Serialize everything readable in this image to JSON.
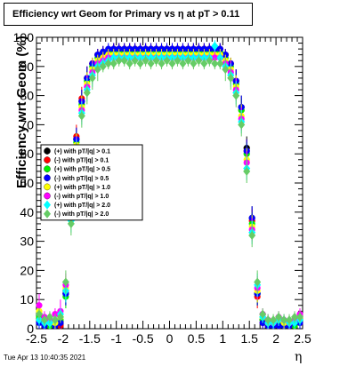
{
  "title": "Efficiency wrt Geom for Primary vs   η at pT > 0.11",
  "timestamp": "Tue Apr 13 10:40:35 2021",
  "chart_data": {
    "type": "scatter",
    "xlabel": "η",
    "ylabel": "Efficiency wrt Geom (%)",
    "xlim": [
      -2.5,
      2.5
    ],
    "ylim": [
      0,
      100
    ],
    "xticks": [
      "-2.5",
      "-2",
      "-1.5",
      "-1",
      "-0.5",
      "0",
      "0.5",
      "1",
      "1.5",
      "2",
      "2.5"
    ],
    "yticks": [
      "0",
      "10",
      "20",
      "30",
      "40",
      "50",
      "60",
      "70",
      "80",
      "90",
      "100"
    ],
    "legend_position": "left-middle",
    "grid": false,
    "x": [
      -2.45,
      -2.35,
      -2.25,
      -2.15,
      -2.05,
      -1.95,
      -1.85,
      -1.75,
      -1.65,
      -1.55,
      -1.45,
      -1.35,
      -1.25,
      -1.15,
      -1.05,
      -0.95,
      -0.85,
      -0.75,
      -0.65,
      -0.55,
      -0.45,
      -0.35,
      -0.25,
      -0.15,
      -0.05,
      0.05,
      0.15,
      0.25,
      0.35,
      0.45,
      0.55,
      0.65,
      0.75,
      0.85,
      0.95,
      1.05,
      1.15,
      1.25,
      1.35,
      1.45,
      1.55,
      1.65,
      1.75,
      1.85,
      1.95,
      2.05,
      2.15,
      2.25,
      2.35,
      2.45
    ],
    "series": [
      {
        "name": "(+) with pT/|q| > 0.1",
        "color": "#000000",
        "marker": "circle",
        "values": [
          5,
          2,
          3,
          1,
          2,
          12,
          40,
          65,
          78,
          86,
          91,
          94,
          95,
          95,
          96,
          96,
          96,
          96,
          96,
          96,
          96,
          96,
          96,
          96,
          96,
          96,
          96,
          96,
          96,
          96,
          96,
          96,
          96,
          96,
          96,
          94,
          91,
          85,
          76,
          62,
          38,
          12,
          3,
          1,
          1,
          2,
          1,
          1,
          2,
          3
        ]
      },
      {
        "name": "(-) with pT/|q| > 0.1",
        "color": "#ff0000",
        "marker": "circle",
        "values": [
          3,
          1,
          2,
          2,
          1,
          13,
          41,
          66,
          79,
          86,
          91,
          94,
          95,
          95,
          96,
          96,
          96,
          96,
          96,
          96,
          96,
          96,
          96,
          96,
          96,
          96,
          96,
          96,
          96,
          96,
          96,
          96,
          96,
          96,
          96,
          94,
          91,
          85,
          75,
          61,
          37,
          11,
          2,
          1,
          1,
          1,
          2,
          1,
          1,
          2
        ]
      },
      {
        "name": "(+) with pT/|q| > 0.5",
        "color": "#00ee00",
        "marker": "circle",
        "values": [
          4,
          2,
          1,
          2,
          3,
          11,
          39,
          64,
          77,
          85,
          90,
          93,
          94,
          95,
          95,
          95,
          95,
          95,
          95,
          95,
          95,
          95,
          95,
          95,
          95,
          95,
          95,
          95,
          95,
          95,
          95,
          95,
          95,
          95,
          95,
          93,
          90,
          84,
          75,
          60,
          36,
          12,
          3,
          2,
          1,
          2,
          1,
          2,
          1,
          3
        ]
      },
      {
        "name": "(-) with pT/|q| > 0.5",
        "color": "#0000ff",
        "marker": "circle",
        "values": [
          2,
          1,
          2,
          1,
          2,
          12,
          40,
          65,
          78,
          86,
          91,
          94,
          95,
          96,
          96,
          96,
          96,
          96,
          96,
          96,
          96,
          96,
          96,
          96,
          96,
          96,
          96,
          96,
          96,
          96,
          96,
          96,
          96,
          96,
          96,
          94,
          91,
          85,
          76,
          61,
          38,
          12,
          2,
          1,
          1,
          1,
          1,
          1,
          2,
          2
        ]
      },
      {
        "name": "(+) with pT/|q| > 1.0",
        "color": "#ffff00",
        "marker": "circle",
        "values": [
          6,
          3,
          2,
          2,
          4,
          14,
          38,
          63,
          76,
          84,
          89,
          92,
          93,
          94,
          94,
          94,
          94,
          94,
          94,
          94,
          94,
          94,
          94,
          94,
          94,
          94,
          94,
          94,
          94,
          94,
          94,
          94,
          94,
          94,
          94,
          92,
          89,
          83,
          73,
          58,
          35,
          13,
          4,
          2,
          2,
          3,
          2,
          2,
          3,
          4
        ]
      },
      {
        "name": "(-) with pT/|q| > 1.0",
        "color": "#ff00ff",
        "marker": "circle",
        "values": [
          8,
          4,
          3,
          5,
          6,
          15,
          42,
          62,
          75,
          83,
          88,
          91,
          92,
          93,
          93,
          93,
          93,
          93,
          93,
          93,
          93,
          93,
          93,
          93,
          93,
          93,
          93,
          93,
          93,
          93,
          93,
          93,
          93,
          93,
          93,
          91,
          88,
          82,
          72,
          57,
          34,
          14,
          5,
          3,
          2,
          4,
          3,
          2,
          3,
          5
        ]
      },
      {
        "name": "(+) with pT/|q| > 2.0",
        "color": "#00ffff",
        "marker": "diamond",
        "values": [
          3,
          2,
          2,
          3,
          5,
          13,
          37,
          61,
          74,
          82,
          87,
          90,
          91,
          92,
          93,
          93,
          93,
          93,
          93,
          93,
          93,
          93,
          93,
          93,
          93,
          93,
          93,
          93,
          93,
          93,
          93,
          93,
          93,
          97,
          93,
          90,
          87,
          81,
          71,
          55,
          33,
          15,
          4,
          2,
          2,
          3,
          3,
          2,
          2,
          3
        ]
      },
      {
        "name": "(-) with pT/|q| > 2.0",
        "color": "#66cc66",
        "marker": "diamond",
        "values": [
          5,
          3,
          4,
          3,
          4,
          16,
          36,
          60,
          73,
          81,
          86,
          89,
          90,
          91,
          91,
          92,
          92,
          91,
          92,
          91,
          92,
          91,
          92,
          91,
          92,
          91,
          92,
          91,
          92,
          91,
          92,
          91,
          92,
          91,
          91,
          89,
          86,
          80,
          70,
          54,
          32,
          16,
          5,
          3,
          3,
          4,
          3,
          3,
          4,
          4
        ]
      }
    ]
  }
}
